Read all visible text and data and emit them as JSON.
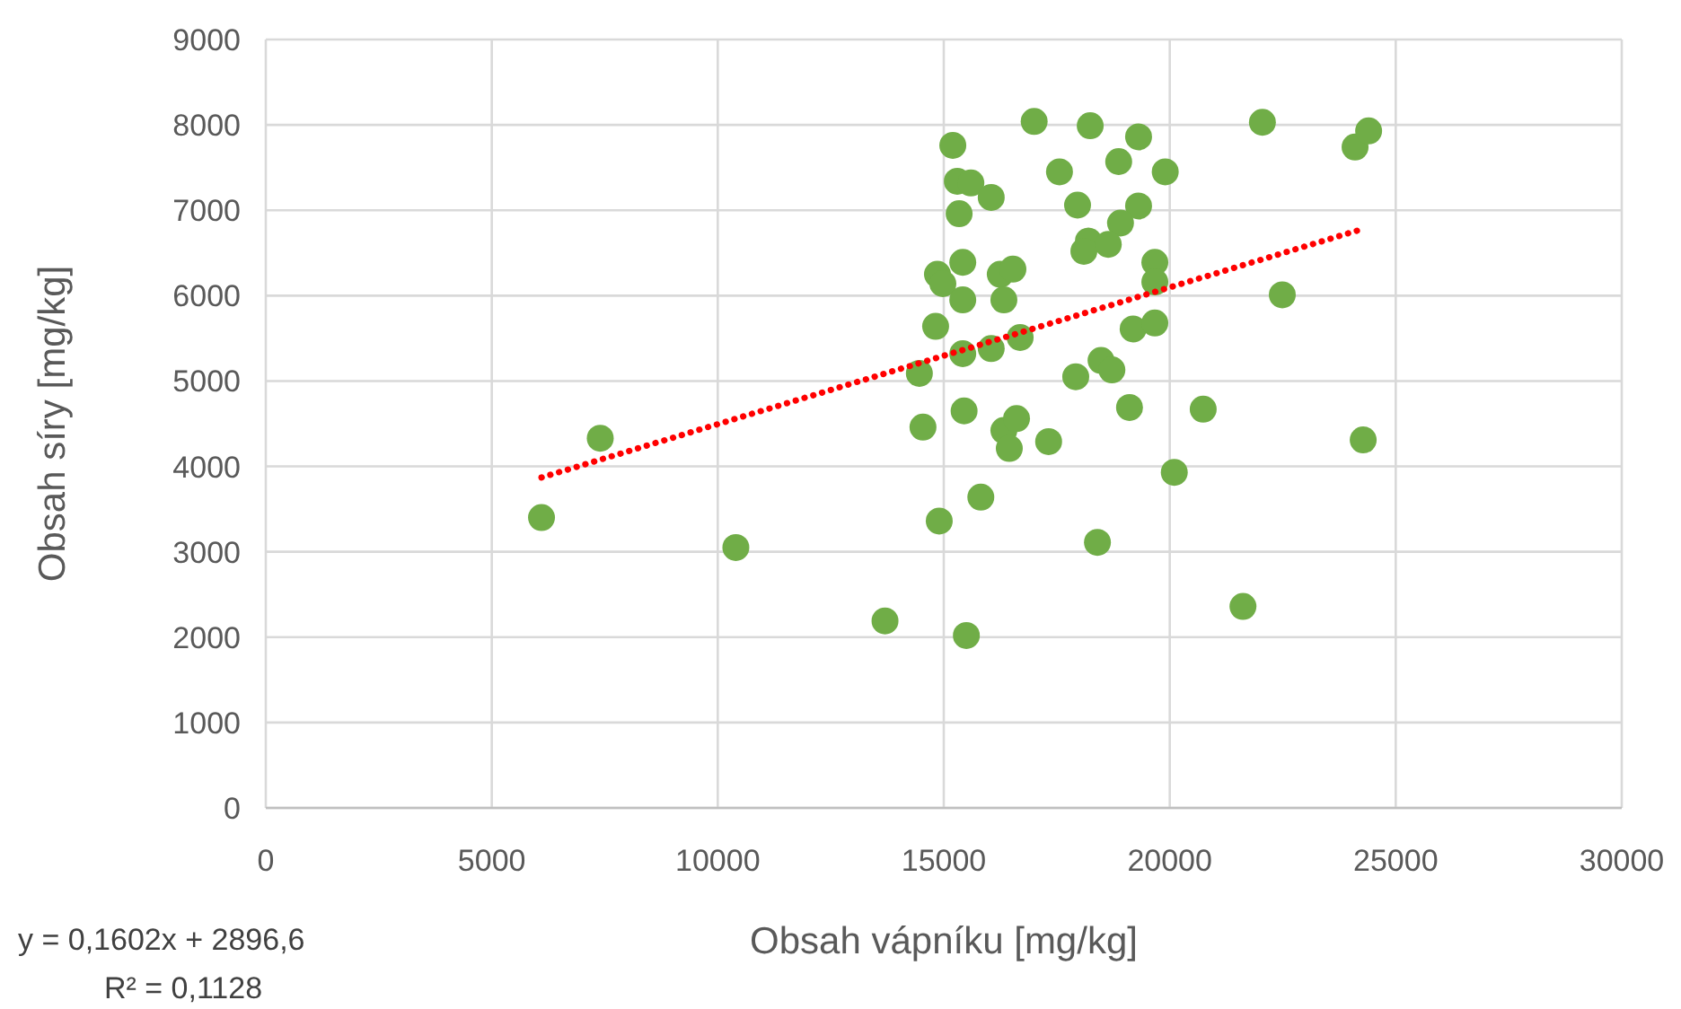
{
  "chart_data": {
    "type": "scatter",
    "xlabel": "Obsah vápníku [mg/kg]",
    "ylabel": "Obsah síry [mg/kg]",
    "xlim": [
      0,
      30000
    ],
    "xticks": [
      0,
      5000,
      10000,
      15000,
      20000,
      25000,
      30000
    ],
    "ylim": [
      0,
      9000
    ],
    "yticks": [
      0,
      1000,
      2000,
      3000,
      4000,
      5000,
      6000,
      7000,
      8000,
      9000
    ],
    "grid": true,
    "series": [
      {
        "color": "#70ad47",
        "marker": "circle",
        "x": [
          6100,
          7400,
          10400,
          13700,
          15500,
          15200,
          17000,
          18240,
          19310,
          22050,
          24100,
          24400,
          15300,
          15600,
          16050,
          17560,
          18870,
          19900,
          17960,
          19310,
          15340,
          18910,
          18200,
          18100,
          18640,
          19670,
          19670,
          14860,
          14980,
          15420,
          16250,
          16530,
          15420,
          16330,
          22490,
          14820,
          16690,
          19190,
          19670,
          15420,
          16050,
          18480,
          18720,
          17920,
          14460,
          14540,
          15450,
          16330,
          16610,
          16450,
          17320,
          19110,
          20740,
          24280,
          15820,
          14900,
          20100,
          18400,
          21620
        ],
        "values": [
          3400,
          4330,
          3050,
          2190,
          2020,
          7760,
          8040,
          7990,
          7860,
          8030,
          7740,
          7930,
          7340,
          7320,
          7150,
          7450,
          7570,
          7450,
          7060,
          7050,
          6960,
          6850,
          6640,
          6520,
          6600,
          6390,
          6160,
          6250,
          6140,
          6390,
          6250,
          6310,
          5950,
          5950,
          6010,
          5640,
          5510,
          5610,
          5680,
          5320,
          5380,
          5240,
          5130,
          5050,
          5090,
          4460,
          4650,
          4420,
          4560,
          4210,
          4290,
          4690,
          4670,
          4310,
          3640,
          3360,
          3930,
          3110,
          2360
        ]
      },
      {
        "type": "line",
        "color": "#ff0000",
        "marker": "none",
        "line_style": "dotted",
        "x": [
          6100,
          24200
        ],
        "values": [
          3870,
          6770
        ]
      }
    ],
    "annotations": [
      "y = 0,1602x + 2896,6",
      "R² = 0,1128"
    ]
  }
}
